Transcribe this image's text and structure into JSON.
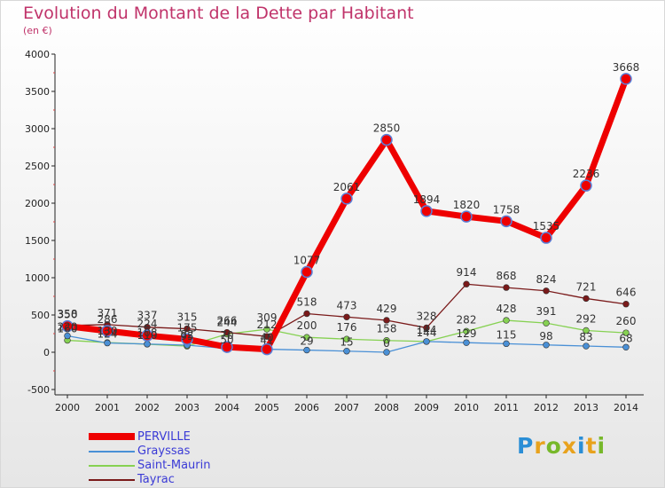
{
  "title": "Evolution du Montant de la Dette par Habitant",
  "subtitle": "(en €)",
  "logo": {
    "letters": [
      "P",
      "r",
      "o",
      "x",
      "i",
      "t",
      "i"
    ],
    "colors": [
      "#2a8ed6",
      "#e8a21d",
      "#77b82a",
      "#e8a21d",
      "#2a8ed6",
      "#e8a21d",
      "#77b82a"
    ]
  },
  "chart_data": {
    "type": "line",
    "title": "Evolution du Montant de la Dette par Habitant",
    "ylabel": "(en €)",
    "x": [
      "2000",
      "2001",
      "2002",
      "2003",
      "2004",
      "2005",
      "2006",
      "2007",
      "2008",
      "2009",
      "2010",
      "2011",
      "2012",
      "2013",
      "2014"
    ],
    "ylim": [
      -500,
      4000
    ],
    "yticks": [
      "-500",
      "0",
      "500",
      "1000",
      "1500",
      "2000",
      "2500",
      "3000",
      "3500",
      "4000"
    ],
    "grid": false,
    "legend": "bottom-left",
    "series": [
      {
        "name": "PERVILLE",
        "color": "#ee0000",
        "values": [
          350,
          286,
          224,
          175,
          70,
          40,
          1077,
          2061,
          2850,
          1894,
          1820,
          1758,
          1535,
          2236,
          3668
        ],
        "labels": [
          "350",
          "286",
          "224",
          "175",
          "70",
          "40",
          "1077",
          "2061",
          "2850",
          "1894",
          "1820",
          "1758",
          "1535",
          "2236",
          "3668"
        ]
      },
      {
        "name": "Grayssas",
        "color": "#4a90d6",
        "values": [
          220,
          124,
          110,
          95,
          50,
          41,
          29,
          15,
          0,
          144,
          129,
          115,
          98,
          83,
          68
        ],
        "labels": [
          "220",
          "124",
          "110",
          "95",
          "50",
          "41",
          "29",
          "15",
          "0",
          "144",
          "129",
          "115",
          "98",
          "83",
          "68"
        ]
      },
      {
        "name": "Saint-Maurin",
        "color": "#86d152",
        "values": [
          160,
          130,
          108,
          82,
          244,
          309,
          200,
          176,
          158,
          144,
          282,
          428,
          391,
          292,
          260
        ],
        "labels": [
          "160",
          "130",
          "108",
          "82",
          "244",
          "309",
          "200",
          "176",
          "158",
          "144",
          "282",
          "428",
          "391",
          "292",
          "260"
        ]
      },
      {
        "name": "Tayrac",
        "color": "#7a1a1a",
        "values": [
          358,
          371,
          337,
          315,
          266,
          212,
          518,
          473,
          429,
          328,
          914,
          868,
          824,
          721,
          646
        ],
        "labels": [
          "358",
          "371",
          "337",
          "315",
          "266",
          "212",
          "518",
          "473",
          "429",
          "328",
          "914",
          "868",
          "824",
          "721",
          "646"
        ]
      }
    ]
  }
}
